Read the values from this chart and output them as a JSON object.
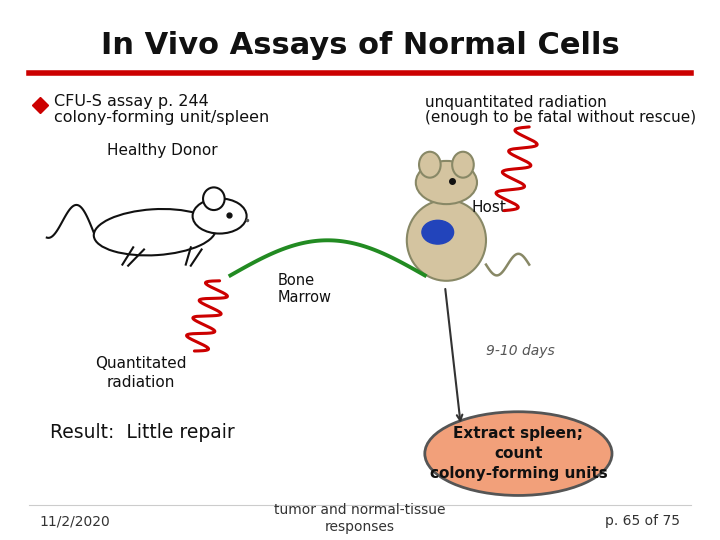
{
  "title": "In Vivo Assays of Normal Cells",
  "title_fontsize": 22,
  "bg_color": "#ffffff",
  "red_line_color": "#cc0000",
  "bullet_color": "#cc0000",
  "bullet_text1": "CFU-S assay p. 244",
  "bullet_text2": "colony-forming unit/spleen",
  "unquant_text1": "unquantitated radiation",
  "unquant_text2": "(enough to be fatal without rescue)",
  "healthy_donor_label": "Healthy Donor",
  "host_label": "Host",
  "bone_marrow_label": "Bone\nMarrow",
  "days_label": "9-10 days",
  "quant_rad_label": "Quantitated\nradiation",
  "result_label": "Result:  Little repair",
  "ellipse_text": "Extract spleen;\ncount\ncolony-forming units",
  "ellipse_color": "#f2a07a",
  "ellipse_edge_color": "#555555",
  "footer_left": "11/2/2020",
  "footer_center": "tumor and normal-tissue\nresponses",
  "footer_right": "p. 65 of 75",
  "green_arc_color": "#228B22",
  "red_wave_color": "#cc0000",
  "arrow_color": "#333333"
}
